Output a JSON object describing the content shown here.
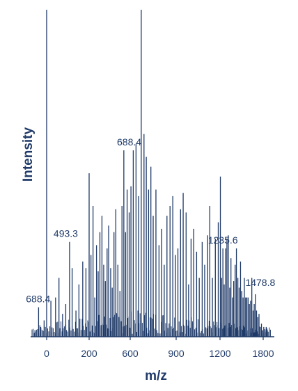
{
  "chart_data": {
    "type": "bar",
    "title": "",
    "xlabel": "m/z",
    "ylabel": "Intensity",
    "xlim": [
      -70,
      1880
    ],
    "ylim": [
      0,
      100
    ],
    "grid": false,
    "x_ticks": [
      0,
      200,
      600,
      900,
      1200,
      1800
    ],
    "x_tick_labels": [
      "0",
      "200",
      "600",
      "900",
      "1200",
      "1800"
    ],
    "colors": {
      "line": "#1f3a68",
      "text": "#1f3a68"
    },
    "series": [
      {
        "x": [
          -55,
          -38,
          -28,
          -12,
          0,
          20,
          42,
          58,
          75,
          90,
          108,
          120,
          138,
          152,
          170,
          185,
          200,
          218,
          238,
          255,
          272,
          288,
          305,
          325,
          342,
          358,
          375,
          390,
          410,
          425,
          442,
          460,
          480,
          500,
          520,
          538,
          555,
          570,
          590,
          605,
          620,
          638,
          655,
          672,
          690,
          705,
          720,
          735,
          750,
          768,
          788,
          805,
          822,
          840,
          860,
          878,
          895,
          912,
          930,
          948,
          968,
          985,
          1002,
          1020,
          1040,
          1058,
          1078,
          1095,
          1115,
          1130,
          1148,
          1168,
          1188,
          1205,
          1222,
          1240,
          1258,
          1278,
          1296,
          1315,
          1335,
          1352,
          1372,
          1390,
          1410,
          1428,
          1448,
          1466,
          1485,
          1502,
          1520,
          1538,
          1556,
          1572,
          1590,
          1608,
          1625,
          1642,
          1660,
          1675,
          1692,
          1708,
          1725,
          1742,
          1760,
          1776,
          1792,
          1808,
          1825,
          1842,
          1858
        ],
        "y": [
          2,
          9,
          3,
          5,
          100,
          11,
          12,
          18,
          7,
          10,
          29,
          21,
          8,
          16,
          23,
          21,
          50,
          25,
          40,
          12,
          28,
          20,
          32,
          37,
          22,
          17,
          27,
          34,
          21,
          15,
          32,
          39,
          22,
          14,
          40,
          57,
          32,
          45,
          38,
          46,
          57,
          59,
          43,
          100,
          62,
          55,
          45,
          52,
          37,
          45,
          28,
          33,
          22,
          37,
          40,
          43,
          25,
          27,
          39,
          44,
          38,
          16,
          30,
          33,
          26,
          18,
          29,
          22,
          31,
          40,
          18,
          30,
          35,
          49,
          18,
          27,
          16,
          27,
          30,
          31,
          15,
          24,
          12,
          17,
          22,
          27,
          18,
          15,
          23,
          14,
          12,
          18,
          12,
          12,
          12,
          10,
          11,
          18,
          8,
          10,
          13,
          8,
          6,
          7,
          3,
          4,
          2,
          3,
          2,
          3,
          2
        ]
      }
    ],
    "annotations": [
      {
        "label": "688.4",
        "x": -40,
        "y": 9
      },
      {
        "label": "493.3",
        "x": 90,
        "y": 29
      },
      {
        "label": "688.4",
        "x": 590,
        "y": 57
      },
      {
        "label": "1235.6",
        "x": 1240,
        "y": 27
      },
      {
        "label": "1478.8",
        "x": 1760,
        "y": 14
      }
    ]
  }
}
